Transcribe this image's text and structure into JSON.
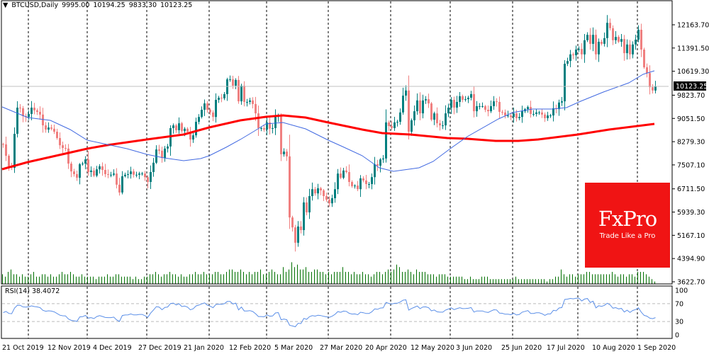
{
  "header": {
    "symbol": "BTCUSD,Daily",
    "open": "9995.00",
    "high": "10194.25",
    "low": "9833.30",
    "close": "10123.25"
  },
  "logo": {
    "brand": "FxPro",
    "tagline": "Trade Like a Pro"
  },
  "colors": {
    "bull": "#008080",
    "bear": "#f08080",
    "ma_fast": "#4169e1",
    "ma_slow": "#ff0000",
    "volume": "#007000",
    "rsi": "#5b8fe8",
    "logo_bg": "#f01414"
  },
  "chart_data": [
    {
      "type": "candlestick",
      "title": "BTCUSD,Daily",
      "ylim": [
        3622.7,
        12163.7
      ],
      "price_ticks": [
        "12163.70",
        "11391.50",
        "10619.30",
        "9823.70",
        "9051.50",
        "8279.30",
        "7507.10",
        "6711.50",
        "5939.30",
        "5167.10",
        "4394.90",
        "3622.70"
      ],
      "current_price": "10123.25",
      "date_labels": [
        "21 Oct 2019",
        "12 Nov 2019",
        "4 Dec 2019",
        "27 Dec 2019",
        "21 Jan 2020",
        "12 Feb 2020",
        "5 Mar 2020",
        "27 Mar 2020",
        "20 Apr 2020",
        "12 May 2020",
        "3 Jun 2020",
        "25 Jun 2020",
        "17 Jul 2020",
        "10 Aug 2020",
        "1 Sep 2020"
      ],
      "date_label_bar_index": [
        0,
        16,
        32,
        48,
        64,
        80,
        96,
        112,
        128,
        144,
        160,
        176,
        192,
        208,
        224
      ],
      "first_open": 8200,
      "closes": [
        8190,
        7810,
        7460,
        7410,
        8540,
        9410,
        9390,
        9130,
        9100,
        9200,
        9410,
        9320,
        9270,
        9180,
        8820,
        8680,
        8750,
        8710,
        8610,
        8400,
        8160,
        8070,
        8050,
        7550,
        7290,
        7200,
        7080,
        7530,
        7550,
        7690,
        7270,
        7320,
        7150,
        7360,
        7460,
        7340,
        7200,
        7180,
        7180,
        7220,
        6850,
        6590,
        7130,
        7180,
        7200,
        7290,
        7180,
        7180,
        7220,
        7220,
        7100,
        6940,
        7270,
        7580,
        8020,
        7980,
        7740,
        8050,
        8120,
        8730,
        8820,
        8660,
        8890,
        8630,
        8710,
        8610,
        8350,
        8490,
        8940,
        9100,
        9340,
        9550,
        9340,
        9250,
        9100,
        9670,
        9740,
        9720,
        9860,
        10350,
        10350,
        10140,
        10330,
        9620,
        10140,
        9600,
        9600,
        9650,
        9530,
        9220,
        8730,
        8730,
        8680,
        8920,
        8710,
        8730,
        9100,
        9150,
        7860,
        7950,
        7790,
        5760,
        5430,
        4920,
        5460,
        5340,
        6260,
        5930,
        6470,
        6700,
        6560,
        6730,
        6660,
        6470,
        6350,
        6230,
        6400,
        6700,
        7220,
        7080,
        7320,
        7270,
        6940,
        6800,
        6820,
        6700,
        7060,
        6990,
        6870,
        6870,
        7100,
        7530,
        7480,
        7690,
        7720,
        8920,
        8800,
        8730,
        8920,
        8940,
        9250,
        9810,
        9980,
        8610,
        8990,
        9290,
        9650,
        9220,
        9650,
        9690,
        9550,
        9010,
        9220,
        8890,
        8820,
        8820,
        9220,
        9410,
        9670,
        9410,
        9600,
        9790,
        9670,
        9690,
        9740,
        9860,
        9290,
        9460,
        9460,
        9460,
        9340,
        9290,
        9460,
        9620,
        9600,
        9270,
        9250,
        9150,
        9150,
        9100,
        9220,
        9060,
        9100,
        9290,
        9360,
        9430,
        9200,
        9200,
        9250,
        9250,
        9180,
        9060,
        9150,
        9150,
        9390,
        9360,
        9580,
        9620,
        10870,
        10960,
        11180,
        11150,
        11340,
        11360,
        11180,
        11650,
        11830,
        11530,
        11830,
        11180,
        11600,
        11530,
        11720,
        12230,
        12050,
        11650,
        11760,
        11600,
        11690,
        11220,
        11510,
        11180,
        11510,
        11670,
        12000,
        11340,
        10750,
        10560,
        10090,
        9980,
        10123.25
      ],
      "ma_fast": [
        [
          0,
          9434
        ],
        [
          9,
          9081
        ],
        [
          17,
          8987
        ],
        [
          24,
          8681
        ],
        [
          30,
          8328
        ],
        [
          37,
          8187
        ],
        [
          44,
          8046
        ],
        [
          51,
          7857
        ],
        [
          57,
          7740
        ],
        [
          64,
          7646
        ],
        [
          70,
          7716
        ],
        [
          73,
          7810
        ],
        [
          79,
          8093
        ],
        [
          84,
          8352
        ],
        [
          89,
          8634
        ],
        [
          93,
          8869
        ],
        [
          99,
          8916
        ],
        [
          107,
          8704
        ],
        [
          115,
          8328
        ],
        [
          120,
          8116
        ],
        [
          127,
          7810
        ],
        [
          133,
          7410
        ],
        [
          138,
          7293
        ],
        [
          147,
          7410
        ],
        [
          152,
          7622
        ],
        [
          158,
          8046
        ],
        [
          164,
          8446
        ],
        [
          175,
          9034
        ],
        [
          180,
          9246
        ],
        [
          187,
          9363
        ],
        [
          194,
          9363
        ],
        [
          199,
          9410
        ],
        [
          204,
          9622
        ],
        [
          212,
          9928
        ],
        [
          221,
          10234
        ],
        [
          226,
          10516
        ],
        [
          230,
          10634
        ]
      ],
      "ma_slow": [
        [
          0,
          7363
        ],
        [
          9,
          7599
        ],
        [
          30,
          8046
        ],
        [
          37,
          8163
        ],
        [
          51,
          8352
        ],
        [
          64,
          8516
        ],
        [
          73,
          8752
        ],
        [
          84,
          8987
        ],
        [
          93,
          9105
        ],
        [
          99,
          9152
        ],
        [
          107,
          9081
        ],
        [
          115,
          8916
        ],
        [
          127,
          8681
        ],
        [
          134,
          8563
        ],
        [
          144,
          8516
        ],
        [
          157,
          8398
        ],
        [
          164,
          8375
        ],
        [
          174,
          8305
        ],
        [
          182,
          8305
        ],
        [
          189,
          8352
        ],
        [
          203,
          8516
        ],
        [
          214,
          8681
        ],
        [
          224,
          8799
        ],
        [
          230,
          8869
        ]
      ],
      "volume_relative": [
        4,
        3,
        5,
        6,
        4,
        4,
        3,
        4,
        3,
        3,
        4,
        5,
        3,
        3,
        4,
        4,
        3,
        4,
        3,
        3,
        4,
        5,
        4,
        4,
        5,
        4,
        3,
        3,
        4,
        3,
        3,
        3,
        3,
        2,
        3,
        3,
        3,
        4,
        3,
        3,
        4,
        4,
        3,
        3,
        3,
        3,
        2,
        3,
        2,
        2,
        3,
        3,
        4,
        4,
        5,
        4,
        3,
        4,
        4,
        5,
        4,
        4,
        3,
        4,
        3,
        3,
        4,
        4,
        5,
        4,
        4,
        5,
        4,
        4,
        4,
        5,
        5,
        4,
        4,
        5,
        6,
        6,
        5,
        5,
        6,
        5,
        4,
        5,
        4,
        5,
        5,
        6,
        4,
        4,
        5,
        6,
        5,
        4,
        4,
        7,
        5,
        6,
        9,
        7,
        8,
        6,
        6,
        7,
        5,
        5,
        6,
        6,
        5,
        5,
        4,
        5,
        4,
        5,
        5,
        5,
        7,
        5,
        5,
        4,
        5,
        4,
        4,
        5,
        4,
        4,
        3,
        4,
        5,
        5,
        4,
        5,
        6,
        5,
        6,
        8,
        7,
        5,
        5,
        6,
        5,
        4,
        6,
        5,
        5,
        5,
        4,
        4,
        4,
        3,
        4,
        4,
        4,
        3,
        3,
        3,
        3,
        3,
        3,
        2,
        2,
        3,
        2,
        2,
        2,
        3,
        3,
        3,
        2,
        2,
        2,
        2,
        2,
        2,
        2,
        2,
        2,
        3,
        2,
        2,
        2,
        2,
        2,
        2,
        2,
        2,
        2,
        2,
        1,
        2,
        2,
        3,
        3,
        6,
        4,
        3,
        4,
        4,
        3,
        4,
        4,
        4,
        5,
        5,
        4,
        4,
        4,
        4,
        4,
        4,
        4,
        5,
        4,
        3,
        4,
        4,
        3,
        4,
        4,
        3,
        5,
        5,
        5,
        4,
        3,
        2,
        1
      ]
    },
    {
      "type": "line",
      "title": "RSI(14)",
      "label": "RSI(14) 38.4072",
      "last_value": "38.4072",
      "ylim": [
        0,
        100
      ],
      "ticks": [
        "100",
        "70",
        "30",
        "0"
      ],
      "levels": [
        70,
        30
      ]
    }
  ]
}
